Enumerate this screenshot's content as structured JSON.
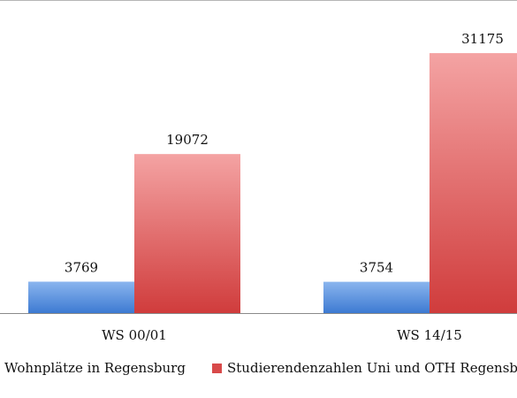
{
  "chart_data": {
    "type": "bar",
    "categories": [
      "WS 00/01",
      "WS 14/15"
    ],
    "series": [
      {
        "name": "Wohnplätze in Regensburg",
        "values": [
          3769,
          3754
        ],
        "color": "#4a86d8"
      },
      {
        "name": "Studierendenzahlen Uni und OTH Regensburg",
        "values": [
          19072,
          31175
        ],
        "color": "#d84a4a"
      }
    ],
    "title": "",
    "xlabel": "",
    "ylabel": "",
    "ylim": [
      0,
      35000
    ],
    "grid": false,
    "legend": "bottom"
  }
}
